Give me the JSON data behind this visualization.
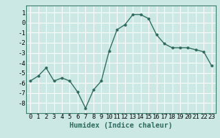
{
  "x": [
    0,
    1,
    2,
    3,
    4,
    5,
    6,
    7,
    8,
    9,
    10,
    11,
    12,
    13,
    14,
    15,
    16,
    17,
    18,
    19,
    20,
    21,
    22,
    23
  ],
  "y": [
    -5.8,
    -5.3,
    -4.5,
    -5.8,
    -5.5,
    -5.8,
    -6.9,
    -8.5,
    -6.7,
    -5.8,
    -2.8,
    -0.7,
    -0.2,
    0.8,
    0.8,
    0.4,
    -1.2,
    -2.1,
    -2.5,
    -2.5,
    -2.5,
    -2.7,
    -2.9,
    -4.3
  ],
  "line_color": "#2e6b5e",
  "marker": "o",
  "markersize": 2,
  "linewidth": 1.0,
  "xlabel": "Humidex (Indice chaleur)",
  "xlim": [
    -0.5,
    23.5
  ],
  "ylim": [
    -9,
    1.7
  ],
  "yticks": [
    1,
    0,
    -1,
    -2,
    -3,
    -4,
    -5,
    -6,
    -7,
    -8
  ],
  "xticks": [
    0,
    1,
    2,
    3,
    4,
    5,
    6,
    7,
    8,
    9,
    10,
    11,
    12,
    13,
    14,
    15,
    16,
    17,
    18,
    19,
    20,
    21,
    22,
    23
  ],
  "bg_color": "#cce8e4",
  "grid_color": "#ffffff",
  "tick_fontsize": 6.5,
  "xlabel_fontsize": 7.5,
  "spine_color": "#3a7a6a"
}
